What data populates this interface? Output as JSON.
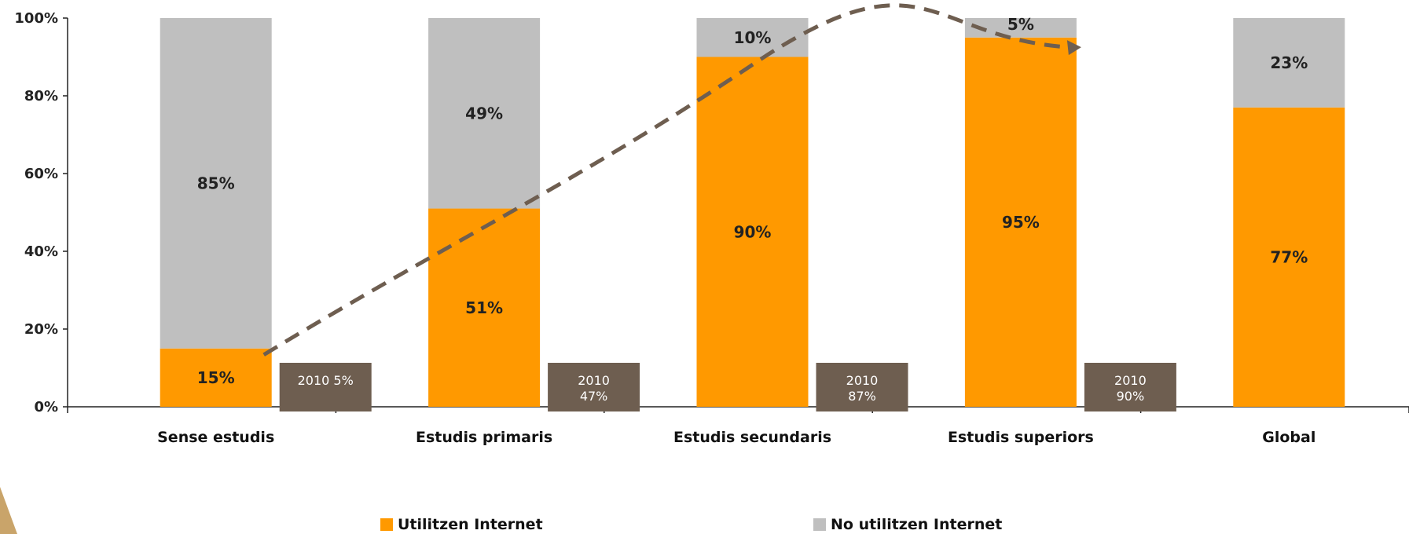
{
  "colors": {
    "used": "#FF9900",
    "not_used": "#BFBFBF",
    "annotation_box": "#6E5E50",
    "trend": "#6E5E50"
  },
  "chart_data": {
    "type": "bar",
    "stacked": true,
    "categories": [
      "Sense estudis",
      "Estudis primaris",
      "Estudis secundaris",
      "Estudis superiors",
      "Global"
    ],
    "series": [
      {
        "name": "Utilitzen Internet",
        "values": [
          15,
          51,
          90,
          95,
          77
        ],
        "labels": [
          "15%",
          "51%",
          "90%",
          "95%",
          "77%"
        ]
      },
      {
        "name": "No utilitzen Internet",
        "values": [
          85,
          49,
          10,
          5,
          23
        ],
        "labels": [
          "85%",
          "49%",
          "10%",
          "5%",
          "23%"
        ]
      }
    ],
    "ylim": [
      0,
      100
    ],
    "yticks": [
      "0%",
      "20%",
      "40%",
      "60%",
      "80%",
      "100%"
    ],
    "annotations": [
      {
        "lines": [
          "2010  5%"
        ]
      },
      {
        "lines": [
          "2010",
          "47%"
        ]
      },
      {
        "lines": [
          "2010",
          "87%"
        ]
      },
      {
        "lines": [
          "2010",
          "90%"
        ]
      }
    ],
    "trend_line": "dashed arrow",
    "legend_position": "bottom"
  }
}
